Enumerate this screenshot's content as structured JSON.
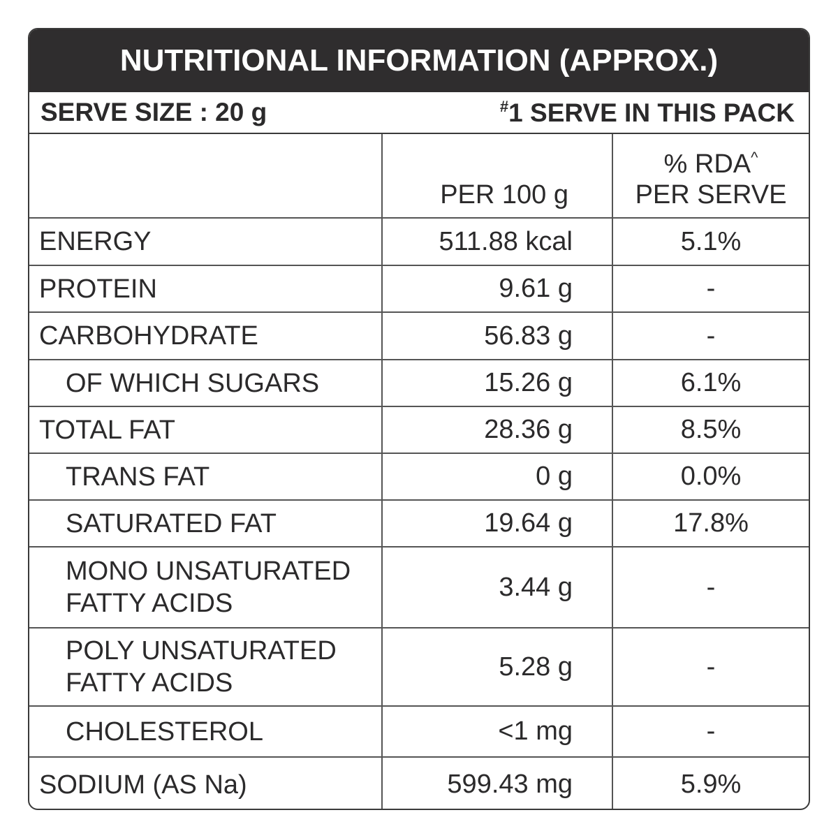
{
  "header": {
    "title": "NUTRITIONAL INFORMATION (APPROX.)"
  },
  "serve": {
    "size": "SERVE SIZE : 20 g",
    "marker": "#",
    "count": "1 SERVE IN THIS PACK"
  },
  "table": {
    "columns": [
      "PER 100 g",
      "% RDA",
      "^",
      "PER SERVE"
    ],
    "rows": [
      [
        [
          "ENERGY"
        ],
        "511.88 kcal",
        "5.1%"
      ],
      [
        [
          "PROTEIN"
        ],
        "9.61 g",
        "-"
      ],
      [
        [
          "CARBOHYDRATE"
        ],
        "56.83 g",
        "-"
      ],
      [
        [
          "OF WHICH SUGARS"
        ],
        "15.26 g",
        "6.1%"
      ],
      [
        [
          "TOTAL FAT"
        ],
        "28.36 g",
        "8.5%"
      ],
      [
        [
          "TRANS FAT"
        ],
        "0 g",
        "0.0%"
      ],
      [
        [
          "SATURATED FAT"
        ],
        "19.64 g",
        "17.8%"
      ],
      [
        [
          "MONO UNSATURATED",
          "FATTY ACIDS"
        ],
        "3.44 g",
        "-"
      ],
      [
        [
          "POLY UNSATURATED",
          "FATTY ACIDS"
        ],
        "5.28 g",
        "-"
      ],
      [
        [
          "CHOLESTEROL"
        ],
        "<1 mg",
        "-"
      ],
      [
        [
          "SODIUM (AS Na)"
        ],
        "599.43 mg",
        "5.9%"
      ]
    ]
  }
}
